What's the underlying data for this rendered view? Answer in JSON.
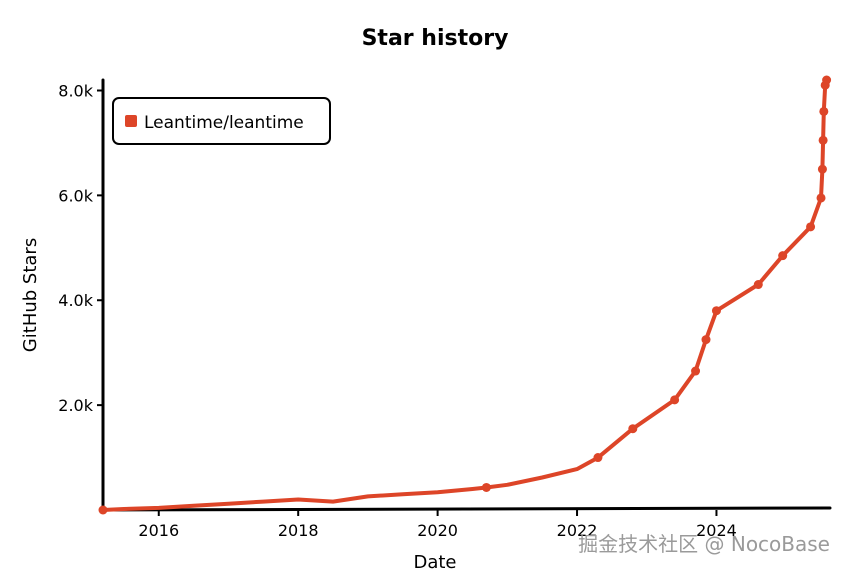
{
  "chart_data": {
    "type": "line",
    "title": "Star history",
    "xlabel": "Date",
    "ylabel": "GitHub Stars",
    "xlim": [
      2015.2,
      2025.6
    ],
    "ylim": [
      0,
      8200
    ],
    "x_ticks": [
      2016,
      2018,
      2020,
      2022,
      2024
    ],
    "x_tick_labels": [
      "2016",
      "2018",
      "2020",
      "2022",
      "2024"
    ],
    "y_ticks": [
      2000,
      4000,
      6000,
      8000
    ],
    "y_tick_labels": [
      "2.0k",
      "4.0k",
      "6.0k",
      "8.0k"
    ],
    "grid": false,
    "legend_position": "top-left",
    "series": [
      {
        "name": "Leantime/leantime",
        "color": "#dd4528",
        "x": [
          2015.2,
          2015.5,
          2016.0,
          2016.5,
          2017.0,
          2017.5,
          2018.0,
          2018.5,
          2019.0,
          2019.5,
          2020.0,
          2020.5,
          2020.7,
          2021.0,
          2021.5,
          2022.0,
          2022.3,
          2022.8,
          2023.4,
          2023.7,
          2023.85,
          2024.0,
          2024.6,
          2024.95,
          2025.35,
          2025.5,
          2025.52,
          2025.53,
          2025.54,
          2025.56,
          2025.58
        ],
        "y": [
          0,
          20,
          40,
          80,
          120,
          160,
          200,
          160,
          260,
          300,
          340,
          400,
          430,
          480,
          620,
          780,
          1000,
          1550,
          2100,
          2650,
          3250,
          3800,
          4300,
          4850,
          5400,
          5950,
          6500,
          7050,
          7600,
          8100,
          8200
        ]
      }
    ],
    "markers_x": [
      2015.2,
      2020.7,
      2022.3,
      2022.8,
      2023.4,
      2023.7,
      2023.85,
      2024.0,
      2024.6,
      2024.95,
      2025.35,
      2025.5,
      2025.52,
      2025.53,
      2025.54,
      2025.56,
      2025.58
    ]
  },
  "watermark": "掘金技术社区 @ NocoBase"
}
